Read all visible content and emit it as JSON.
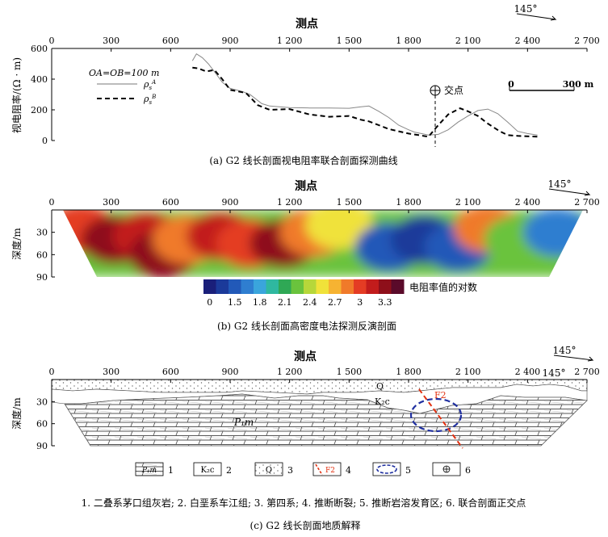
{
  "chart_data": [
    {
      "type": "line",
      "title": "测点",
      "ylabel": "视电阻率/(Ω · m)",
      "caption": "(a) G2 线长剖面视电阻率联合剖面探测曲线",
      "xlim": [
        0,
        2700
      ],
      "ylim": [
        0,
        600
      ],
      "x_ticks": [
        "0",
        "300",
        "600",
        "900",
        "1 200",
        "1 500",
        "1 800",
        "2 100",
        "2 400",
        "2 700"
      ],
      "y_ticks": [
        "0",
        "200",
        "400",
        "600"
      ],
      "annotations": {
        "azimuth": "145°",
        "param": "OA=OB=100 m",
        "intersection_label": "交点",
        "scale_left": "0",
        "scale_right": "300 m",
        "intersection_x": 1935
      },
      "series": [
        {
          "name": "ρsA",
          "style": "solid thin",
          "points": [
            [
              710,
              520
            ],
            [
              730,
              565
            ],
            [
              760,
              540
            ],
            [
              790,
              500
            ],
            [
              820,
              450
            ],
            [
              860,
              380
            ],
            [
              900,
              340
            ],
            [
              960,
              320
            ],
            [
              1000,
              300
            ],
            [
              1060,
              240
            ],
            [
              1100,
              225
            ],
            [
              1200,
              215
            ],
            [
              1300,
              212
            ],
            [
              1400,
              212
            ],
            [
              1500,
              210
            ],
            [
              1560,
              220
            ],
            [
              1600,
              225
            ],
            [
              1650,
              190
            ],
            [
              1700,
              150
            ],
            [
              1750,
              100
            ],
            [
              1800,
              70
            ],
            [
              1830,
              55
            ],
            [
              1900,
              35
            ],
            [
              1950,
              40
            ],
            [
              2000,
              70
            ],
            [
              2050,
              120
            ],
            [
              2100,
              160
            ],
            [
              2150,
              195
            ],
            [
              2200,
              205
            ],
            [
              2250,
              175
            ],
            [
              2300,
              120
            ],
            [
              2350,
              60
            ],
            [
              2400,
              45
            ],
            [
              2450,
              35
            ]
          ]
        },
        {
          "name": "ρsB",
          "style": "dashed thick",
          "points": [
            [
              710,
              475
            ],
            [
              740,
              470
            ],
            [
              780,
              450
            ],
            [
              820,
              460
            ],
            [
              860,
              400
            ],
            [
              900,
              330
            ],
            [
              980,
              310
            ],
            [
              1040,
              230
            ],
            [
              1100,
              200
            ],
            [
              1200,
              205
            ],
            [
              1300,
              170
            ],
            [
              1400,
              155
            ],
            [
              1500,
              160
            ],
            [
              1560,
              135
            ],
            [
              1600,
              125
            ],
            [
              1650,
              100
            ],
            [
              1700,
              75
            ],
            [
              1750,
              60
            ],
            [
              1800,
              45
            ],
            [
              1850,
              35
            ],
            [
              1900,
              25
            ],
            [
              1950,
              100
            ],
            [
              2000,
              170
            ],
            [
              2060,
              210
            ],
            [
              2100,
              190
            ],
            [
              2150,
              160
            ],
            [
              2200,
              110
            ],
            [
              2260,
              60
            ],
            [
              2300,
              35
            ],
            [
              2350,
              30
            ],
            [
              2460,
              25
            ]
          ]
        }
      ]
    },
    {
      "type": "heatmap",
      "title": "测点",
      "ylabel": "深度/m",
      "caption": "(b) G2 线长剖面高密度电法探测反演剖面",
      "xlim": [
        0,
        2700
      ],
      "ylim": [
        0,
        90
      ],
      "x_ticks": [
        "0",
        "300",
        "600",
        "900",
        "1 200",
        "1 500",
        "1 800",
        "2 100",
        "2 400",
        "2 700"
      ],
      "y_ticks": [
        "30",
        "60",
        "90"
      ],
      "azimuth": "145°",
      "colorbar": {
        "label": "电阻率值的对数",
        "ticks": [
          "0",
          "1.5",
          "1.8",
          "2.1",
          "2.4",
          "2.7",
          "3",
          "3.3"
        ],
        "colors": [
          "#1a1f7a",
          "#1b3a9a",
          "#2259b8",
          "#2f7ed0",
          "#3aa5dc",
          "#2fb8a0",
          "#2fa855",
          "#6ac33d",
          "#b7d73a",
          "#f0e23a",
          "#f6b332",
          "#f07a2a",
          "#e43c24",
          "#c21c1c",
          "#8e0f1a",
          "#5a0a2a"
        ]
      },
      "zones": [
        {
          "x": 150,
          "z": 25,
          "value": 3.2
        },
        {
          "x": 320,
          "z": 40,
          "value": 3.4
        },
        {
          "x": 480,
          "z": 35,
          "value": 3.3
        },
        {
          "x": 560,
          "z": 60,
          "value": 3.5
        },
        {
          "x": 680,
          "z": 40,
          "value": 2.9
        },
        {
          "x": 850,
          "z": 35,
          "value": 3.3
        },
        {
          "x": 1000,
          "z": 45,
          "value": 3.1
        },
        {
          "x": 1170,
          "z": 45,
          "value": 3.5
        },
        {
          "x": 1320,
          "z": 30,
          "value": 3.0
        },
        {
          "x": 1450,
          "z": 20,
          "value": 2.6
        },
        {
          "x": 1700,
          "z": 50,
          "value": 1.5
        },
        {
          "x": 1880,
          "z": 40,
          "value": 1.3
        },
        {
          "x": 2050,
          "z": 50,
          "value": 1.5
        },
        {
          "x": 2200,
          "z": 25,
          "value": 2.9
        },
        {
          "x": 2350,
          "z": 40,
          "value": 2.3
        },
        {
          "x": 2550,
          "z": 30,
          "value": 1.7
        }
      ]
    },
    {
      "type": "diagram",
      "title": "测点",
      "ylabel": "深度/m",
      "caption": "(c) G2 线长剖面地质解释",
      "xlim": [
        0,
        2700
      ],
      "ylim": [
        0,
        90
      ],
      "x_ticks": [
        "0",
        "300",
        "600",
        "900",
        "1 200",
        "1 500",
        "1 800",
        "2 100",
        "2 400",
        "2 700"
      ],
      "y_ticks": [
        "30",
        "60",
        "90"
      ],
      "azimuth": "145°",
      "azimuth_second": "145°",
      "units": {
        "q": "Q",
        "k2c": "K₂c",
        "p1m": "P₁m",
        "fault": "F2"
      },
      "legend": [
        {
          "num": "1",
          "sym": "P₁m"
        },
        {
          "num": "2",
          "sym": "K₂c"
        },
        {
          "num": "3",
          "sym": "Q"
        },
        {
          "num": "4",
          "sym": "F2"
        },
        {
          "num": "5",
          "sym": ""
        },
        {
          "num": "6",
          "sym": ""
        }
      ],
      "legend_text": "1. 二叠系茅口组灰岩; 2. 白垩系车江组; 3. 第四系; 4. 推断断裂; 5. 推断岩溶发育区; 6. 联合剖面正交点"
    }
  ]
}
